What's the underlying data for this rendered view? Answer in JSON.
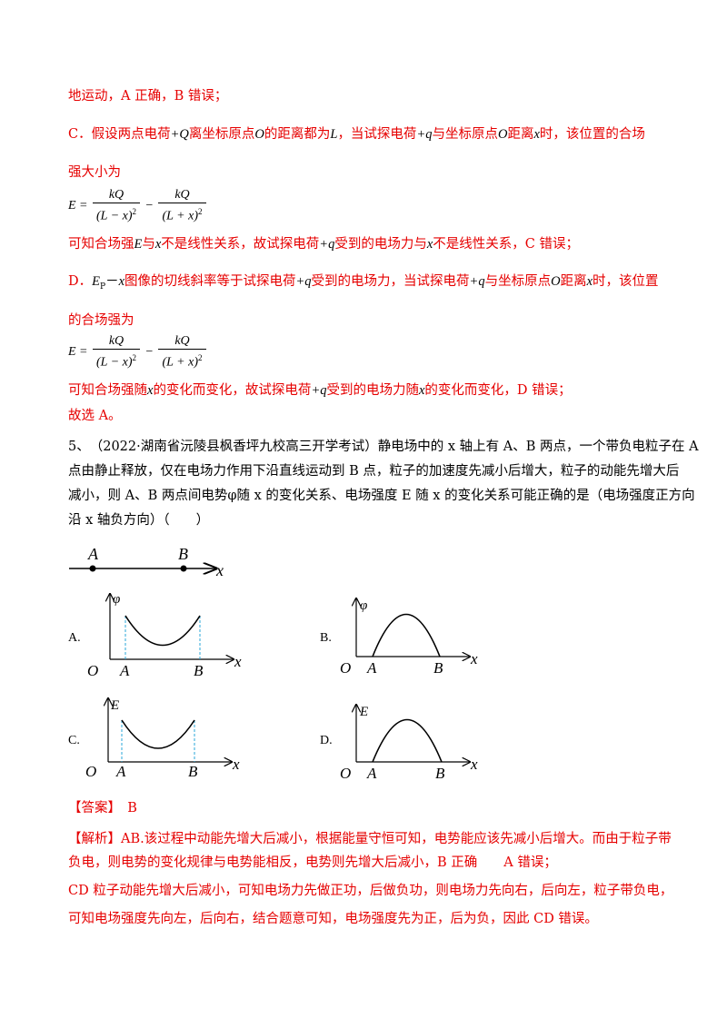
{
  "lines": {
    "l1": "地运动，A 正确，B 错误；",
    "c_intro": {
      "p1": "C．假设两点电荷",
      "q1": "+Q",
      "p2": "离坐标原点",
      "o1": "O",
      "p3": "的距离都为",
      "l": "L",
      "p4": "，当试探电荷",
      "q2": "+q",
      "p5": "与坐标原点",
      "o2": "O",
      "p6": "距离",
      "x": "x",
      "p7": "时，该位置的合场"
    },
    "c_intro2": "强大小为",
    "c_concl": {
      "p1": "可知合场强",
      "e": "E",
      "p2": "与",
      "x": "x",
      "p3": "不是线性关系，故试探电荷",
      "q": "+q",
      "p4": "受到的电场力与",
      "x2": "x",
      "p5": "不是线性关系，C 错误；"
    },
    "d_intro": {
      "p1": "D．",
      "ep": "E",
      "sub": "P",
      "dash": "－",
      "x": "x",
      "p2": "图像的切线斜率等于试探电荷",
      "q1": "+q",
      "p3": "受到的电场力，当试探电荷",
      "q2": "+q",
      "p4": "与坐标原点",
      "o": "O",
      "p5": "距离",
      "x2": "x",
      "p6": "时，该位置"
    },
    "d_intro2": "的合场强为",
    "d_concl": {
      "p1": "可知合场强随",
      "x": "x",
      "p2": "的变化而变化，故试探电荷",
      "q": "+q",
      "p3": "受到的电场力随",
      "x2": "x",
      "p4": "的变化而变化，D 错误；"
    },
    "choose": "故选 A。",
    "q5_1": "5、　（2022·湖南省沅陵县枫香坪九校高三开学考试）静电场中的 x 轴上有 A、B 两点，一个带负电粒子在 A",
    "q5_2": "点由静止释放，仅在电场力作用下沿直线运动到 B 点，粒子的加速度先减小后增大，粒子的动能先增大后",
    "q5_3": "减小，则 A、B 两点间电势φ随 x 的变化关系、电场强度 E 随 x 的变化关系可能正确的是（电场强度正方向",
    "q5_4": "沿 x 轴负方向）（　　）",
    "ans_label": "【答案】",
    "ans_val": "B",
    "ana_label": "【解析】",
    "ana_1": "AB.该过程中动能先增大后减小，根据能量守恒可知，电势能应该先减小后增大。而由于粒子带",
    "ana_2": "负电，则电势的变化规律与电势能相反，电势则先增大后减小，B 正确　　A 错误；",
    "ana_3": "CD 粒子动能先增大后减小，可知电场力先做正功，后做负功，则电场力先向右，后向左，粒子带负电，",
    "ana_4": "可知电场强度先向左，后向右，结合题意可知，电场强度先为正，后为负，因此 CD 错误。"
  },
  "formula": {
    "lhs": "E =",
    "num": "kQ",
    "den1": "(L − x)",
    "den2": "(L + x)",
    "sup": "2",
    "minus": "−"
  },
  "axis_diagram": {
    "a": "A",
    "b": "B",
    "x": "x"
  },
  "options": {
    "A": {
      "label": "A.",
      "yname": "φ",
      "o": "O",
      "a": "A",
      "b": "B",
      "x": "x"
    },
    "B": {
      "label": "B.",
      "yname": "φ",
      "o": "O",
      "a": "A",
      "b": "B",
      "x": "x"
    },
    "C": {
      "label": "C.",
      "yname": "E",
      "o": "O",
      "a": "A",
      "b": "B",
      "x": "x"
    },
    "D": {
      "label": "D.",
      "yname": "E",
      "o": "O",
      "a": "A",
      "b": "B",
      "x": "x"
    }
  },
  "colors": {
    "answer_red": "#e60000",
    "dash_blue": "#2aa7d8"
  }
}
